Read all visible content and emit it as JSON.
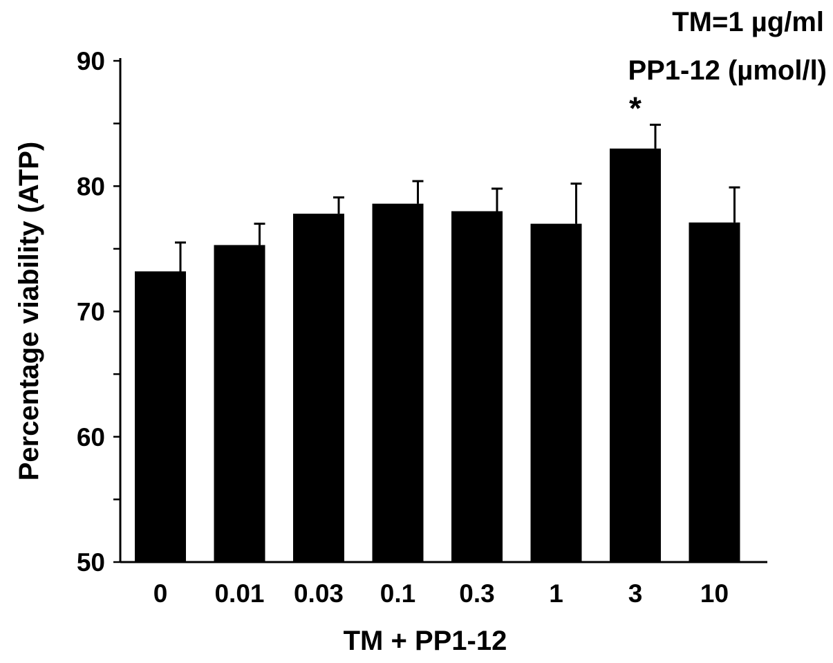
{
  "chart_data": {
    "type": "bar",
    "title": "",
    "annotations": [
      "TM=1 µg/ml",
      "PP1-12 (µmol/l)"
    ],
    "xlabel": "TM + PP1-12",
    "ylabel": "Percentage viability (ATP)",
    "ylim": [
      50,
      90
    ],
    "yticks": [
      50,
      60,
      70,
      80,
      90
    ],
    "categories": [
      "0",
      "0.01",
      "0.03",
      "0.1",
      "0.3",
      "1",
      "3",
      "10"
    ],
    "series": [
      {
        "values": [
          73.2,
          75.3,
          77.8,
          78.6,
          78.0,
          77.0,
          83.0,
          77.1
        ],
        "errors": [
          2.3,
          1.7,
          1.3,
          1.8,
          1.8,
          3.2,
          1.9,
          2.8
        ],
        "significance": [
          "",
          "",
          "",
          "",
          "",
          "",
          "*",
          ""
        ]
      }
    ],
    "bar_color": "#000000",
    "grid": false,
    "legend": "none"
  }
}
